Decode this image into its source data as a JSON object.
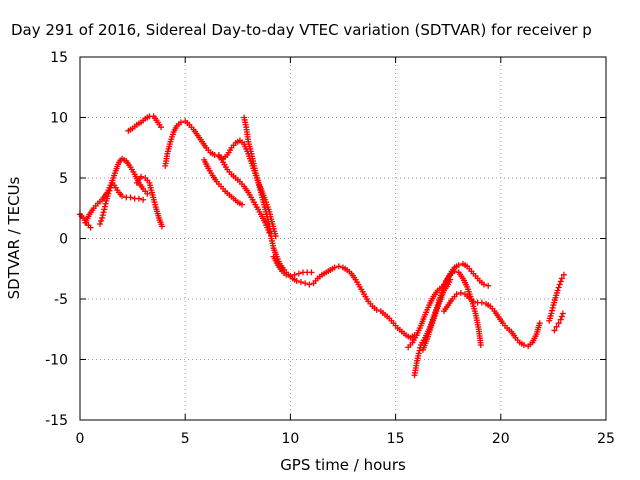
{
  "chart_data": {
    "type": "scatter",
    "title": "Day 291 of 2016, Sidereal Day-to-day VTEC variation (SDTVAR) for receiver p",
    "xlabel": "GPS time / hours",
    "ylabel": "SDTVAR / TECUs",
    "xlim": [
      0,
      25
    ],
    "ylim": [
      -15,
      15
    ],
    "xticks": [
      0,
      5,
      10,
      15,
      20,
      25
    ],
    "yticks": [
      -15,
      -10,
      -5,
      0,
      5,
      10,
      15
    ],
    "grid": true,
    "marker": "+",
    "color": "#ff0000",
    "series": [
      {
        "points": [
          [
            0.0,
            2.0
          ],
          [
            0.15,
            1.7
          ],
          [
            0.3,
            1.3
          ],
          [
            0.5,
            0.9
          ]
        ]
      },
      {
        "points": [
          [
            0.25,
            1.3
          ],
          [
            0.45,
            2.0
          ],
          [
            0.65,
            2.5
          ],
          [
            0.85,
            2.9
          ],
          [
            1.05,
            3.2
          ],
          [
            1.3,
            3.8
          ],
          [
            1.5,
            4.6
          ],
          [
            1.7,
            5.6
          ],
          [
            1.85,
            6.3
          ],
          [
            2.0,
            6.6
          ],
          [
            2.2,
            6.4
          ],
          [
            2.4,
            5.9
          ],
          [
            2.6,
            5.3
          ],
          [
            2.8,
            4.6
          ],
          [
            3.0,
            4.1
          ],
          [
            3.2,
            3.7
          ]
        ]
      },
      {
        "points": [
          [
            0.95,
            1.2
          ],
          [
            1.05,
            1.7
          ],
          [
            1.15,
            2.4
          ],
          [
            1.25,
            3.1
          ],
          [
            1.35,
            3.7
          ],
          [
            1.45,
            4.2
          ],
          [
            1.55,
            4.6
          ],
          [
            1.7,
            4.2
          ],
          [
            1.85,
            3.8
          ],
          [
            2.0,
            3.5
          ],
          [
            2.2,
            3.4
          ],
          [
            2.4,
            3.4
          ],
          [
            2.6,
            3.3
          ],
          [
            2.8,
            3.3
          ],
          [
            3.0,
            3.2
          ]
        ]
      },
      {
        "points": [
          [
            2.7,
            4.6
          ],
          [
            2.9,
            5.1
          ],
          [
            3.1,
            5.0
          ],
          [
            3.3,
            4.6
          ],
          [
            3.45,
            3.6
          ],
          [
            3.6,
            2.6
          ],
          [
            3.75,
            1.7
          ],
          [
            3.9,
            1.0
          ]
        ]
      },
      {
        "points": [
          [
            2.3,
            8.9
          ],
          [
            2.5,
            9.1
          ],
          [
            2.7,
            9.4
          ],
          [
            2.9,
            9.6
          ],
          [
            3.1,
            9.9
          ],
          [
            3.3,
            10.1
          ],
          [
            3.5,
            10.1
          ],
          [
            3.7,
            9.6
          ],
          [
            3.85,
            9.2
          ]
        ]
      },
      {
        "points": [
          [
            4.05,
            6.0
          ],
          [
            4.15,
            7.0
          ],
          [
            4.3,
            8.0
          ],
          [
            4.45,
            8.8
          ],
          [
            4.6,
            9.3
          ],
          [
            4.8,
            9.6
          ],
          [
            5.0,
            9.7
          ],
          [
            5.2,
            9.4
          ],
          [
            5.4,
            9.0
          ],
          [
            5.6,
            8.5
          ],
          [
            5.8,
            8.0
          ],
          [
            6.0,
            7.5
          ],
          [
            6.2,
            7.1
          ],
          [
            6.4,
            6.9
          ],
          [
            6.6,
            6.8
          ],
          [
            6.8,
            6.6
          ],
          [
            7.0,
            6.9
          ],
          [
            7.2,
            7.5
          ],
          [
            7.4,
            7.9
          ],
          [
            7.6,
            8.1
          ],
          [
            7.8,
            7.8
          ],
          [
            8.0,
            7.0
          ],
          [
            8.2,
            6.0
          ],
          [
            8.4,
            5.0
          ],
          [
            8.6,
            4.1
          ],
          [
            8.8,
            3.2
          ],
          [
            9.0,
            2.2
          ],
          [
            9.15,
            1.2
          ],
          [
            9.3,
            0.2
          ]
        ]
      },
      {
        "points": [
          [
            5.9,
            6.5
          ],
          [
            6.1,
            5.8
          ],
          [
            6.3,
            5.2
          ],
          [
            6.5,
            4.7
          ],
          [
            6.7,
            4.3
          ],
          [
            6.9,
            3.9
          ],
          [
            7.1,
            3.6
          ],
          [
            7.3,
            3.3
          ],
          [
            7.5,
            3.0
          ],
          [
            7.7,
            2.8
          ]
        ]
      },
      {
        "points": [
          [
            7.8,
            10.0
          ],
          [
            7.9,
            9.2
          ],
          [
            8.0,
            8.0
          ],
          [
            8.15,
            7.0
          ],
          [
            8.3,
            5.8
          ],
          [
            8.45,
            4.8
          ],
          [
            8.6,
            3.8
          ],
          [
            8.75,
            2.8
          ],
          [
            8.9,
            1.8
          ],
          [
            9.0,
            1.0
          ],
          [
            9.1,
            0.0
          ],
          [
            9.2,
            -0.8
          ],
          [
            9.35,
            -1.5
          ],
          [
            9.5,
            -2.1
          ],
          [
            9.7,
            -2.6
          ],
          [
            9.9,
            -3.0
          ],
          [
            10.1,
            -3.3
          ],
          [
            10.3,
            -3.5
          ],
          [
            10.5,
            -3.6
          ],
          [
            10.7,
            -3.7
          ],
          [
            10.9,
            -3.8
          ],
          [
            11.1,
            -3.7
          ],
          [
            11.3,
            -3.3
          ],
          [
            11.5,
            -3.0
          ],
          [
            11.7,
            -2.8
          ],
          [
            11.9,
            -2.6
          ],
          [
            12.1,
            -2.4
          ],
          [
            12.3,
            -2.3
          ],
          [
            12.5,
            -2.4
          ],
          [
            12.7,
            -2.6
          ],
          [
            12.9,
            -2.9
          ],
          [
            13.1,
            -3.4
          ],
          [
            13.3,
            -4.0
          ],
          [
            13.5,
            -4.6
          ],
          [
            13.7,
            -5.2
          ],
          [
            13.9,
            -5.6
          ],
          [
            14.1,
            -5.9
          ],
          [
            14.3,
            -6.0
          ],
          [
            14.5,
            -6.3
          ],
          [
            14.7,
            -6.6
          ],
          [
            14.9,
            -7.0
          ],
          [
            15.1,
            -7.4
          ],
          [
            15.3,
            -7.7
          ],
          [
            15.5,
            -8.0
          ],
          [
            15.7,
            -8.2
          ],
          [
            15.9,
            -8.0
          ]
        ]
      },
      {
        "points": [
          [
            6.6,
            6.9
          ],
          [
            6.8,
            6.3
          ],
          [
            7.0,
            5.7
          ],
          [
            7.2,
            5.3
          ],
          [
            7.4,
            5.0
          ],
          [
            7.6,
            4.7
          ],
          [
            7.8,
            4.3
          ],
          [
            8.0,
            3.8
          ],
          [
            8.2,
            3.2
          ],
          [
            8.4,
            2.6
          ],
          [
            8.6,
            2.0
          ],
          [
            8.8,
            1.3
          ],
          [
            9.0,
            0.5
          ]
        ]
      },
      {
        "points": [
          [
            9.2,
            -1.5
          ],
          [
            9.4,
            -2.2
          ],
          [
            9.6,
            -2.7
          ],
          [
            9.8,
            -3.0
          ],
          [
            10.0,
            -3.1
          ],
          [
            10.2,
            -3.0
          ],
          [
            10.4,
            -2.9
          ],
          [
            10.6,
            -2.8
          ],
          [
            10.8,
            -2.8
          ],
          [
            11.0,
            -2.8
          ]
        ]
      },
      {
        "points": [
          [
            15.6,
            -9.0
          ],
          [
            15.8,
            -8.6
          ],
          [
            16.0,
            -8.0
          ],
          [
            16.2,
            -7.2
          ],
          [
            16.4,
            -6.3
          ],
          [
            16.6,
            -5.5
          ],
          [
            16.8,
            -4.8
          ],
          [
            17.0,
            -4.3
          ],
          [
            17.2,
            -4.0
          ],
          [
            17.4,
            -3.6
          ],
          [
            17.6,
            -2.9
          ],
          [
            17.8,
            -2.4
          ],
          [
            18.0,
            -2.2
          ],
          [
            18.2,
            -2.1
          ],
          [
            18.4,
            -2.3
          ],
          [
            18.6,
            -2.7
          ],
          [
            18.8,
            -3.1
          ],
          [
            19.0,
            -3.5
          ],
          [
            19.2,
            -3.8
          ],
          [
            19.4,
            -3.9
          ]
        ]
      },
      {
        "points": [
          [
            15.9,
            -11.3
          ],
          [
            16.0,
            -10.3
          ],
          [
            16.1,
            -9.5
          ],
          [
            16.2,
            -8.8
          ],
          [
            16.4,
            -8.2
          ],
          [
            16.6,
            -7.5
          ],
          [
            16.8,
            -6.5
          ],
          [
            17.0,
            -5.5
          ],
          [
            17.2,
            -4.5
          ],
          [
            17.4,
            -3.5
          ],
          [
            17.6,
            -3.0
          ],
          [
            17.8,
            -2.7
          ],
          [
            18.0,
            -2.8
          ],
          [
            18.2,
            -3.3
          ],
          [
            18.4,
            -4.0
          ],
          [
            18.6,
            -5.0
          ],
          [
            18.8,
            -6.2
          ],
          [
            18.95,
            -7.5
          ],
          [
            19.05,
            -8.8
          ]
        ]
      },
      {
        "points": [
          [
            16.3,
            -9.2
          ],
          [
            16.5,
            -8.3
          ],
          [
            16.7,
            -7.2
          ],
          [
            16.9,
            -6.2
          ],
          [
            17.1,
            -5.2
          ],
          [
            17.3,
            -4.3
          ],
          [
            17.5,
            -3.8
          ],
          [
            17.6,
            -3.4
          ]
        ]
      },
      {
        "points": [
          [
            17.3,
            -6.0
          ],
          [
            17.5,
            -5.5
          ],
          [
            17.7,
            -5.0
          ],
          [
            17.9,
            -4.6
          ],
          [
            18.1,
            -4.5
          ],
          [
            18.3,
            -4.6
          ],
          [
            18.5,
            -4.9
          ],
          [
            18.7,
            -5.2
          ],
          [
            18.9,
            -5.3
          ],
          [
            19.1,
            -5.3
          ],
          [
            19.3,
            -5.4
          ],
          [
            19.5,
            -5.6
          ],
          [
            19.7,
            -6.0
          ],
          [
            19.9,
            -6.5
          ],
          [
            20.1,
            -7.0
          ],
          [
            20.3,
            -7.4
          ],
          [
            20.5,
            -7.7
          ],
          [
            20.7,
            -8.2
          ],
          [
            20.9,
            -8.6
          ],
          [
            21.1,
            -8.8
          ],
          [
            21.3,
            -8.9
          ],
          [
            21.5,
            -8.6
          ],
          [
            21.7,
            -7.9
          ],
          [
            21.85,
            -7.0
          ]
        ]
      },
      {
        "points": [
          [
            22.3,
            -6.8
          ],
          [
            22.4,
            -6.2
          ],
          [
            22.5,
            -5.5
          ],
          [
            22.6,
            -4.9
          ],
          [
            22.7,
            -4.3
          ],
          [
            22.8,
            -3.8
          ],
          [
            22.9,
            -3.3
          ],
          [
            23.0,
            -3.0
          ]
        ]
      },
      {
        "points": [
          [
            22.55,
            -7.6
          ],
          [
            22.65,
            -7.3
          ],
          [
            22.75,
            -7.0
          ],
          [
            22.85,
            -6.7
          ],
          [
            22.95,
            -6.2
          ]
        ]
      }
    ]
  }
}
